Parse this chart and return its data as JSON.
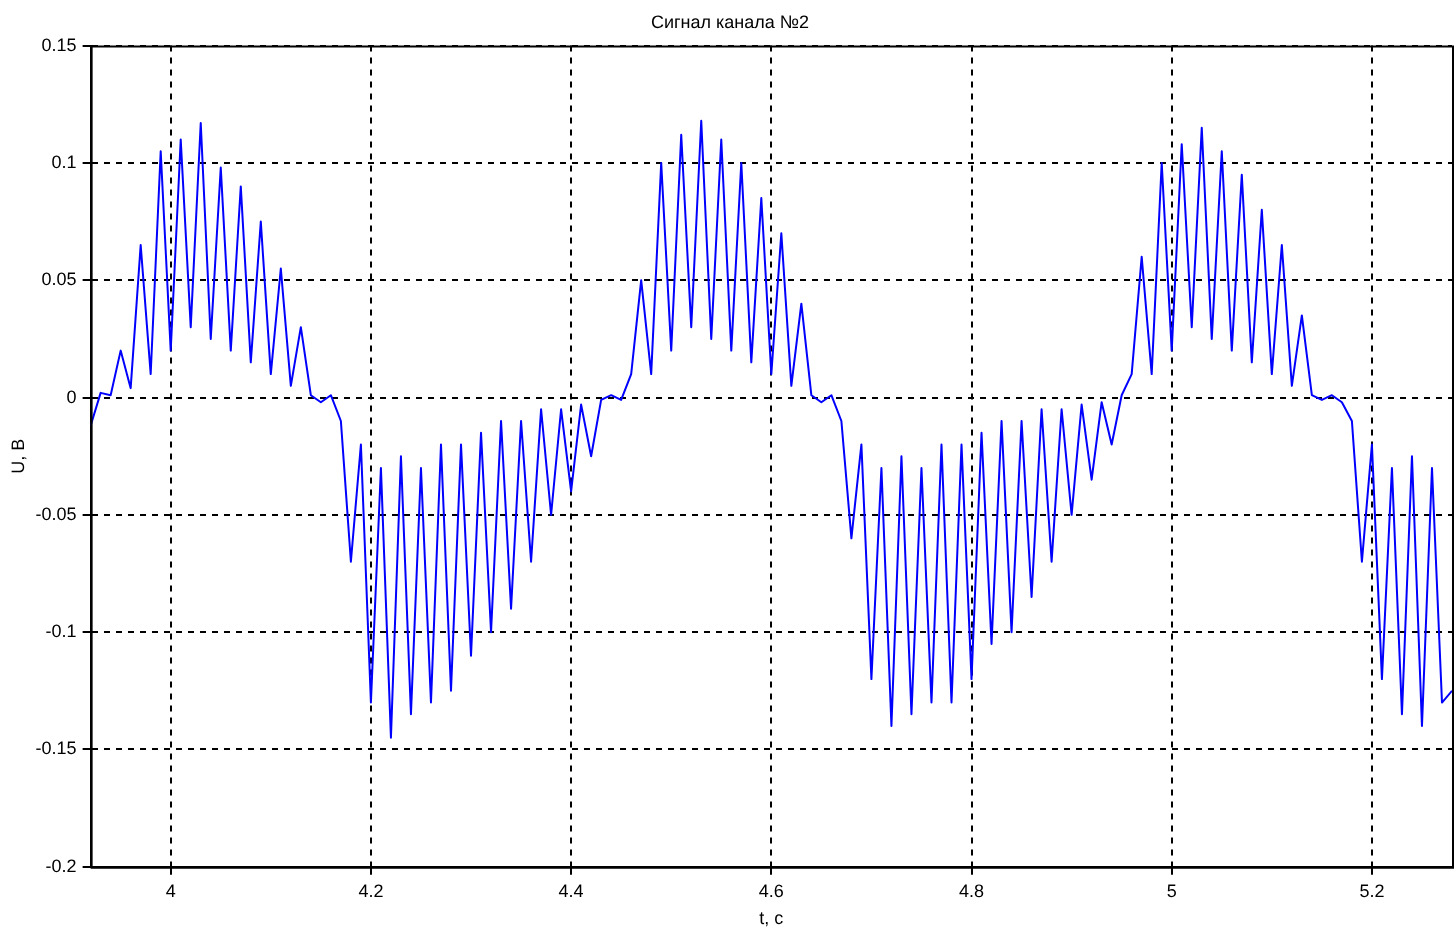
{
  "chart_data": {
    "type": "line",
    "title": "Сигнал канала №2",
    "xlabel": "t, c",
    "ylabel": "U, B",
    "xlim": [
      3.92,
      5.28
    ],
    "ylim": [
      -0.2,
      0.15
    ],
    "xticks": [
      4,
      4.2,
      4.4,
      4.6,
      4.8,
      5,
      5.2
    ],
    "yticks": [
      -0.2,
      -0.15,
      -0.1,
      -0.05,
      0,
      0.05,
      0.1,
      0.15
    ],
    "grid": true,
    "x": [
      3.92,
      3.93,
      3.94,
      3.95,
      3.96,
      3.97,
      3.98,
      3.99,
      4.0,
      4.01,
      4.02,
      4.03,
      4.04,
      4.05,
      4.06,
      4.07,
      4.08,
      4.09,
      4.1,
      4.11,
      4.12,
      4.13,
      4.14,
      4.15,
      4.16,
      4.17,
      4.18,
      4.19,
      4.2,
      4.21,
      4.22,
      4.23,
      4.24,
      4.25,
      4.26,
      4.27,
      4.28,
      4.29,
      4.3,
      4.31,
      4.32,
      4.33,
      4.34,
      4.35,
      4.36,
      4.37,
      4.38,
      4.39,
      4.4,
      4.41,
      4.42,
      4.43,
      4.44,
      4.45,
      4.46,
      4.47,
      4.48,
      4.49,
      4.5,
      4.51,
      4.52,
      4.53,
      4.54,
      4.55,
      4.56,
      4.57,
      4.58,
      4.59,
      4.6,
      4.61,
      4.62,
      4.63,
      4.64,
      4.65,
      4.66,
      4.67,
      4.68,
      4.69,
      4.7,
      4.71,
      4.72,
      4.73,
      4.74,
      4.75,
      4.76,
      4.77,
      4.78,
      4.79,
      4.8,
      4.81,
      4.82,
      4.83,
      4.84,
      4.85,
      4.86,
      4.87,
      4.88,
      4.89,
      4.9,
      4.91,
      4.92,
      4.93,
      4.94,
      4.95,
      4.96,
      4.97,
      4.98,
      4.99,
      5.0,
      5.01,
      5.02,
      5.03,
      5.04,
      5.05,
      5.06,
      5.07,
      5.08,
      5.09,
      5.1,
      5.11,
      5.12,
      5.13,
      5.14,
      5.15,
      5.16,
      5.17,
      5.18,
      5.19,
      5.2,
      5.21,
      5.22,
      5.23,
      5.24,
      5.25,
      5.26,
      5.27,
      5.28
    ],
    "series": [
      {
        "color": "#0000ff",
        "values": [
          -0.012,
          0.002,
          0.001,
          0.02,
          0.004,
          0.065,
          0.01,
          0.105,
          0.02,
          0.11,
          0.03,
          0.117,
          0.025,
          0.098,
          0.02,
          0.09,
          0.015,
          0.075,
          0.01,
          0.055,
          0.005,
          0.03,
          0.001,
          -0.002,
          0.001,
          -0.01,
          -0.07,
          -0.02,
          -0.13,
          -0.03,
          -0.145,
          -0.025,
          -0.135,
          -0.03,
          -0.13,
          -0.02,
          -0.125,
          -0.02,
          -0.11,
          -0.015,
          -0.1,
          -0.01,
          -0.09,
          -0.01,
          -0.07,
          -0.005,
          -0.05,
          -0.005,
          -0.04,
          -0.003,
          -0.025,
          -0.001,
          0.001,
          -0.001,
          0.01,
          0.05,
          0.01,
          0.1,
          0.02,
          0.112,
          0.03,
          0.118,
          0.025,
          0.11,
          0.02,
          0.1,
          0.015,
          0.085,
          0.01,
          0.07,
          0.005,
          0.04,
          0.001,
          -0.002,
          0.001,
          -0.01,
          -0.06,
          -0.02,
          -0.12,
          -0.03,
          -0.14,
          -0.025,
          -0.135,
          -0.03,
          -0.13,
          -0.02,
          -0.13,
          -0.02,
          -0.12,
          -0.015,
          -0.105,
          -0.01,
          -0.1,
          -0.01,
          -0.085,
          -0.005,
          -0.07,
          -0.005,
          -0.05,
          -0.003,
          -0.035,
          -0.002,
          -0.02,
          0.001,
          0.01,
          0.06,
          0.01,
          0.1,
          0.02,
          0.108,
          0.03,
          0.115,
          0.025,
          0.105,
          0.02,
          0.095,
          0.015,
          0.08,
          0.01,
          0.065,
          0.005,
          0.035,
          0.001,
          -0.001,
          0.001,
          -0.002,
          -0.01,
          -0.07,
          -0.02,
          -0.12,
          -0.03,
          -0.135,
          -0.025,
          -0.14,
          -0.03,
          -0.13,
          -0.125
        ]
      }
    ]
  }
}
